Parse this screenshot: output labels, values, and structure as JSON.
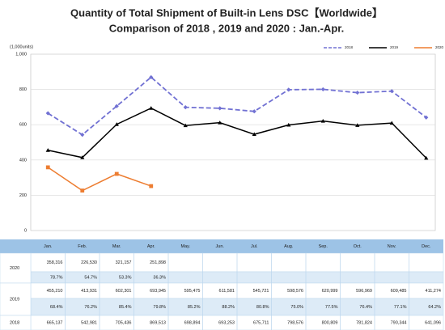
{
  "chart_data": {
    "type": "line",
    "title": "Quantity of Total Shipment of Built-in Lens DSC【Worldwide】",
    "subtitle": "Comparison of 2018 , 2019 and 2020 : Jan.-Apr.",
    "y_label": "(1,000units)",
    "categories": [
      "Jan.",
      "Feb.",
      "Mar.",
      "Apr.",
      "May.",
      "Jun.",
      "Jul.",
      "Aug.",
      "Sep.",
      "Oct.",
      "Nov.",
      "Dec."
    ],
    "ylim": [
      0,
      1000
    ],
    "yticks": [
      0,
      200,
      400,
      600,
      800,
      {
        "value": 1000,
        "label": "1,000"
      }
    ],
    "grid": true,
    "legend": "top-right",
    "series": [
      {
        "name": "2018",
        "color": "#7171d3",
        "dash": true,
        "marker": "diamond",
        "values": [
          665.137,
          542.981,
          705.436,
          869.513,
          698.894,
          693.253,
          675.711,
          798.576,
          800.809,
          781.824,
          790.344,
          641.096
        ]
      },
      {
        "name": "2019",
        "color": "#000000",
        "dash": false,
        "marker": "triangle",
        "values": [
          455.21,
          413.931,
          602.301,
          693.945,
          595.475,
          611.581,
          545.721,
          598.576,
          620.999,
          596.969,
          609.485,
          411.274
        ]
      },
      {
        "name": "2020",
        "color": "#ed7d31",
        "dash": false,
        "marker": "square",
        "values": [
          358.316,
          226.53,
          321.157,
          251.898,
          null,
          null,
          null,
          null,
          null,
          null,
          null,
          null
        ]
      }
    ]
  },
  "table": {
    "rows": [
      {
        "label": "2020",
        "values": [
          "358,316",
          "226,530",
          "321,157",
          "251,898"
        ],
        "ratios": [
          "78.7%",
          "54.7%",
          "53.3%",
          "36.3%"
        ]
      },
      {
        "label": "2019",
        "values": [
          "455,210",
          "413,931",
          "602,301",
          "693,945",
          "595,475",
          "611,581",
          "545,721",
          "598,576",
          "620,999",
          "596,969",
          "609,485",
          "411,274"
        ],
        "ratios": [
          "68.4%",
          "76.2%",
          "85.4%",
          "79.8%",
          "85.2%",
          "88.2%",
          "80.8%",
          "75.0%",
          "77.5%",
          "76.4%",
          "77.1%",
          "64.2%"
        ]
      },
      {
        "label": "2018",
        "values": [
          "665,137",
          "542,981",
          "705,436",
          "869,513",
          "698,894",
          "693,253",
          "675,711",
          "798,576",
          "800,809",
          "781,824",
          "790,344",
          "641,096"
        ]
      }
    ]
  }
}
